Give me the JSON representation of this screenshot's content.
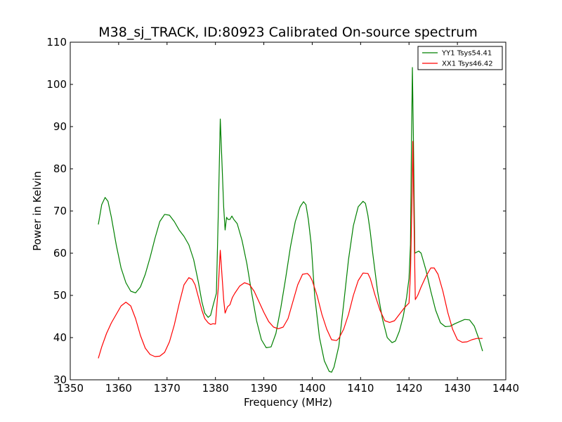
{
  "chart_data": {
    "type": "line",
    "title": "M38_sj_TRACK, ID:80923 Calibrated On-source spectrum",
    "xlabel": "Frequency (MHz)",
    "ylabel": "Power in Kelvin",
    "xlim": [
      1350,
      1440
    ],
    "ylim": [
      30,
      110
    ],
    "xticks": [
      1350,
      1360,
      1370,
      1380,
      1390,
      1400,
      1410,
      1420,
      1430,
      1440
    ],
    "yticks": [
      30,
      40,
      50,
      60,
      70,
      80,
      90,
      100,
      110
    ],
    "grid": false,
    "legend_position": "top-right",
    "series": [
      {
        "name": "YY1 Tsys54.41",
        "color": "#008000",
        "x": [
          1355.8,
          1356.5,
          1357.2,
          1357.8,
          1358.5,
          1359.5,
          1360.5,
          1361.5,
          1362.5,
          1363.5,
          1364.5,
          1365.5,
          1366.5,
          1367.5,
          1368.5,
          1369.5,
          1370.5,
          1371.5,
          1372.5,
          1373.5,
          1374.5,
          1375.5,
          1376.5,
          1377.2,
          1377.8,
          1378.5,
          1379.0,
          1379.6,
          1380.2,
          1380.6,
          1381.0,
          1381.4,
          1381.7,
          1382.0,
          1382.3,
          1382.6,
          1383.0,
          1383.4,
          1383.8,
          1384.5,
          1385.5,
          1386.5,
          1387.5,
          1388.5,
          1389.5,
          1390.5,
          1391.5,
          1392.5,
          1393.5,
          1394.5,
          1395.5,
          1396.5,
          1397.5,
          1398.2,
          1398.7,
          1399.2,
          1399.8,
          1400.5,
          1401.5,
          1402.5,
          1403.5,
          1404.0,
          1404.5,
          1405.5,
          1406.5,
          1407.5,
          1408.5,
          1409.5,
          1410.5,
          1411.0,
          1411.5,
          1412.0,
          1412.5,
          1413.5,
          1414.5,
          1415.5,
          1416.5,
          1417.2,
          1418.0,
          1418.8,
          1419.5,
          1420.0,
          1420.3,
          1420.5,
          1420.7,
          1420.9,
          1421.2,
          1421.5,
          1422.0,
          1422.5,
          1423.0,
          1423.5,
          1424.5,
          1425.5,
          1426.5,
          1427.5,
          1428.5,
          1429.5,
          1430.5,
          1431.5,
          1432.5,
          1433.5,
          1434.5,
          1435.2
        ],
        "y": [
          66.8,
          71.5,
          73.2,
          72.3,
          68.5,
          62.0,
          56.5,
          53.0,
          51.0,
          50.6,
          52.0,
          55.0,
          59.0,
          63.5,
          67.5,
          69.2,
          69.0,
          67.5,
          65.5,
          64.0,
          62.0,
          58.5,
          53.0,
          48.5,
          45.8,
          44.8,
          45.3,
          48.0,
          50.5,
          70.0,
          91.8,
          80.0,
          71.0,
          65.5,
          68.5,
          68.0,
          68.0,
          68.8,
          68.0,
          67.0,
          63.0,
          57.5,
          50.5,
          44.0,
          39.5,
          37.6,
          37.8,
          41.0,
          47.0,
          54.0,
          61.5,
          67.5,
          71.0,
          72.2,
          71.5,
          68.0,
          62.0,
          50.0,
          40.0,
          34.5,
          32.0,
          31.8,
          33.0,
          38.0,
          48.0,
          58.5,
          66.5,
          71.0,
          72.3,
          71.8,
          69.0,
          65.0,
          60.0,
          51.0,
          44.5,
          40.0,
          38.8,
          39.2,
          41.5,
          45.0,
          49.5,
          54.0,
          62.0,
          85.0,
          104.0,
          88.0,
          60.0,
          60.2,
          60.5,
          60.0,
          58.0,
          56.0,
          51.0,
          46.5,
          43.5,
          42.6,
          42.7,
          43.3,
          43.8,
          44.3,
          44.2,
          42.7,
          39.5,
          36.8
        ]
      },
      {
        "name": "XX1 Tsys46.42",
        "color": "#ff0000",
        "x": [
          1355.8,
          1356.5,
          1357.5,
          1358.5,
          1359.5,
          1360.5,
          1361.5,
          1362.5,
          1363.5,
          1364.5,
          1365.5,
          1366.5,
          1367.5,
          1368.5,
          1369.5,
          1370.5,
          1371.5,
          1372.5,
          1373.5,
          1374.5,
          1375.2,
          1375.8,
          1376.5,
          1377.2,
          1377.8,
          1378.5,
          1379.0,
          1379.5,
          1380.0,
          1380.6,
          1381.0,
          1381.4,
          1381.7,
          1382.0,
          1382.5,
          1383.0,
          1383.5,
          1384.0,
          1385.0,
          1386.0,
          1387.0,
          1388.0,
          1389.0,
          1390.0,
          1391.0,
          1392.0,
          1393.0,
          1394.0,
          1395.0,
          1396.0,
          1397.0,
          1398.0,
          1399.0,
          1399.5,
          1400.0,
          1401.0,
          1402.0,
          1403.0,
          1404.0,
          1405.0,
          1405.5,
          1406.5,
          1407.5,
          1408.5,
          1409.5,
          1410.5,
          1411.5,
          1412.0,
          1413.0,
          1414.0,
          1415.0,
          1416.0,
          1417.0,
          1418.0,
          1419.0,
          1420.0,
          1420.3,
          1420.6,
          1420.8,
          1421.0,
          1421.3,
          1421.8,
          1422.5,
          1423.5,
          1424.5,
          1425.2,
          1426.0,
          1427.0,
          1428.0,
          1429.0,
          1430.0,
          1431.0,
          1432.0,
          1433.0,
          1434.0,
          1435.2
        ],
        "y": [
          35.1,
          37.8,
          41.0,
          43.5,
          45.5,
          47.5,
          48.4,
          47.5,
          44.5,
          40.5,
          37.5,
          36.0,
          35.5,
          35.6,
          36.5,
          39.0,
          43.0,
          48.0,
          52.5,
          54.2,
          53.8,
          52.5,
          49.5,
          46.5,
          44.5,
          43.5,
          43.1,
          43.3,
          43.2,
          52.0,
          60.7,
          54.0,
          49.0,
          45.8,
          47.3,
          47.8,
          49.5,
          50.5,
          52.2,
          53.0,
          52.6,
          51.0,
          48.5,
          46.0,
          43.8,
          42.5,
          42.1,
          42.5,
          44.5,
          48.5,
          52.5,
          55.0,
          55.2,
          54.6,
          53.5,
          50.0,
          45.5,
          42.0,
          39.5,
          39.3,
          39.8,
          42.0,
          45.5,
          50.0,
          53.5,
          55.3,
          55.2,
          54.0,
          50.0,
          46.5,
          44.0,
          43.6,
          44.0,
          45.5,
          47.0,
          48.2,
          55.0,
          72.0,
          86.5,
          70.0,
          49.0,
          50.0,
          52.0,
          54.5,
          56.5,
          56.5,
          55.0,
          51.0,
          46.0,
          42.0,
          39.5,
          38.9,
          39.0,
          39.5,
          39.8,
          39.8
        ]
      }
    ]
  }
}
